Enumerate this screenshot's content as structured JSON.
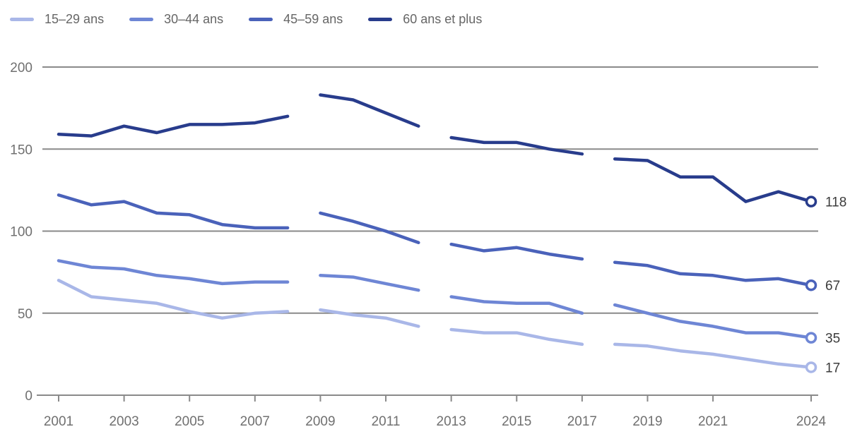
{
  "colors": {
    "background": "#ffffff",
    "grid": "#8a8a8a",
    "axis_text": "#707070",
    "legend_text": "#666666",
    "end_label_text": "#3c3c3c",
    "marker_fill": "#ffffff"
  },
  "legend": {
    "position": "top-left",
    "items": [
      "15–29 ans",
      "30–44 ans",
      "45–59 ans",
      "60 ans et plus"
    ]
  },
  "chart_data": {
    "type": "line",
    "title": "",
    "xlabel": "",
    "ylabel": "",
    "x_range": [
      2001,
      2024
    ],
    "years": [
      2001,
      2002,
      2003,
      2004,
      2005,
      2006,
      2007,
      2008,
      2009,
      2010,
      2011,
      2012,
      2013,
      2014,
      2015,
      2016,
      2017,
      2018,
      2019,
      2020,
      2021,
      2022,
      2023,
      2024
    ],
    "x_tick_labels": [
      "2001",
      "2003",
      "2005",
      "2007",
      "2009",
      "2011",
      "2013",
      "2015",
      "2017",
      "2019",
      "2021",
      "2024"
    ],
    "x_tick_years": [
      2001,
      2003,
      2005,
      2007,
      2009,
      2011,
      2013,
      2015,
      2017,
      2019,
      2021,
      2024
    ],
    "y_ticks": [
      0,
      50,
      100,
      150,
      200
    ],
    "y_tick_labels": [
      "0",
      "50",
      "100",
      "150",
      "200"
    ],
    "ylim": [
      0,
      200
    ],
    "grid": "horizontal",
    "legend_position": "top-left",
    "series_breaks": [
      [
        2001,
        2008
      ],
      [
        2009,
        2012
      ],
      [
        2013,
        2017
      ],
      [
        2018,
        2024
      ]
    ],
    "series": [
      {
        "name": "15–29 ans",
        "color": "#a9b7e8",
        "end_label": "17",
        "values": [
          70,
          60,
          58,
          56,
          51,
          47,
          50,
          51,
          52,
          49,
          47,
          42,
          40,
          38,
          38,
          34,
          31,
          31,
          30,
          27,
          25,
          22,
          19,
          17
        ]
      },
      {
        "name": "30–44 ans",
        "color": "#6e86d5",
        "end_label": "35",
        "values": [
          82,
          78,
          77,
          73,
          71,
          68,
          69,
          69,
          73,
          72,
          68,
          64,
          60,
          57,
          56,
          56,
          50,
          55,
          50,
          45,
          42,
          38,
          38,
          35
        ]
      },
      {
        "name": "45–59 ans",
        "color": "#4a62ba",
        "end_label": "67",
        "values": [
          122,
          116,
          118,
          111,
          110,
          104,
          102,
          102,
          111,
          106,
          100,
          93,
          92,
          88,
          90,
          86,
          83,
          81,
          79,
          74,
          73,
          70,
          71,
          67
        ]
      },
      {
        "name": "60 ans et plus",
        "color": "#283c8c",
        "end_label": "118",
        "values": [
          159,
          158,
          164,
          160,
          165,
          165,
          166,
          170,
          183,
          180,
          172,
          164,
          157,
          154,
          154,
          150,
          147,
          144,
          143,
          133,
          133,
          118,
          124,
          118
        ]
      }
    ]
  }
}
